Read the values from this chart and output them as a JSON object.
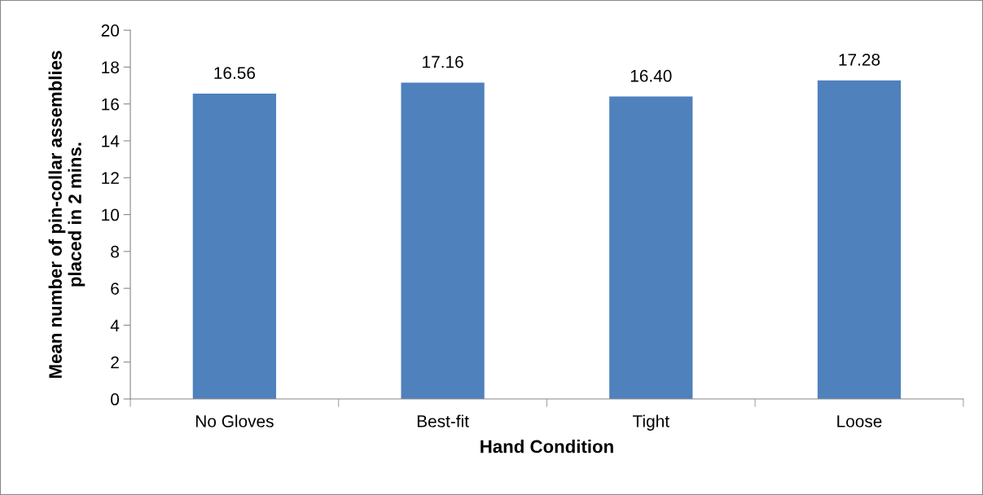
{
  "chart_data": {
    "type": "bar",
    "xlabel": "Hand Condition",
    "ylabel": "Mean number of pin-collar assemblies\nplaced in 2 mins.",
    "categories": [
      "No Gloves",
      "Best-fit",
      "Tight",
      "Loose"
    ],
    "values": [
      16.56,
      17.16,
      16.4,
      17.28
    ],
    "value_labels": [
      "16.56",
      "17.16",
      "16.40",
      "17.28"
    ],
    "color": "#4f81bd",
    "ylim": [
      0,
      20
    ],
    "yticks": [
      0,
      2,
      4,
      6,
      8,
      10,
      12,
      14,
      16,
      18,
      20
    ],
    "grid": false,
    "legend": false
  }
}
